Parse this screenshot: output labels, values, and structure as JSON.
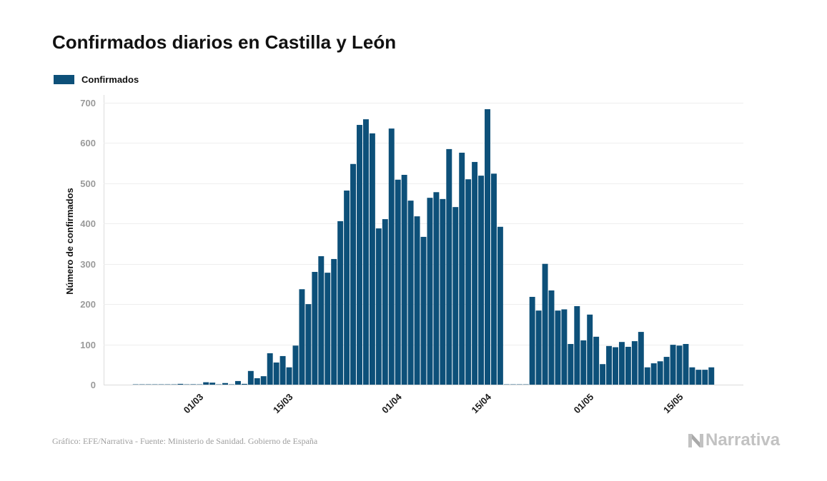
{
  "colors": {
    "bar": "#0d5079",
    "text": "#111111",
    "tick_label": "#9a9a9a",
    "grid": "#eeeeee",
    "axis": "#dcdcdc",
    "footer": "#9e9e9e",
    "logo": "#c2c2c2"
  },
  "footer": {
    "credit": "Gráfico: EFE/Narrativa - Fuente: Ministerio de Sanidad. Gobierno de España"
  },
  "logo": {
    "text": "Narrativa",
    "icon": "narrativa-n-icon"
  },
  "chart_data": {
    "type": "bar",
    "title": "Confirmados diarios en Castilla y León",
    "legend": "top-left",
    "series": [
      {
        "name": "Confirmados",
        "first_day_of_year": 51,
        "values": [
          0,
          0,
          0,
          0,
          0,
          0,
          0,
          2,
          0,
          1,
          0,
          6,
          5,
          0,
          4,
          0,
          9,
          2,
          34,
          16,
          21,
          78,
          55,
          71,
          43,
          97,
          237,
          200,
          280,
          319,
          278,
          312,
          406,
          482,
          548,
          645,
          659,
          624,
          388,
          411,
          636,
          509,
          521,
          457,
          418,
          367,
          464,
          478,
          461,
          585,
          441,
          576,
          510,
          553,
          519,
          684,
          524,
          392,
          0,
          0,
          0,
          0,
          218,
          184,
          300,
          234,
          184,
          187,
          101,
          195,
          110,
          174,
          119,
          51,
          96,
          93,
          106,
          94,
          108,
          131,
          43,
          53,
          58,
          69,
          99,
          97,
          101,
          43,
          37,
          37,
          43
        ]
      }
    ],
    "x_domain_day_of_year": [
      46,
      146
    ],
    "xticks": [
      {
        "day_of_year": 61,
        "label": "01/03"
      },
      {
        "day_of_year": 75,
        "label": "15/03"
      },
      {
        "day_of_year": 92,
        "label": "01/04"
      },
      {
        "day_of_year": 106,
        "label": "15/04"
      },
      {
        "day_of_year": 122,
        "label": "01/05"
      },
      {
        "day_of_year": 136,
        "label": "15/05"
      }
    ],
    "xlabel": "",
    "ylabel": "Número de confirmados",
    "ylim": [
      0,
      700
    ],
    "yticks": [
      0,
      100,
      200,
      300,
      400,
      500,
      600,
      700
    ],
    "grid": true
  }
}
